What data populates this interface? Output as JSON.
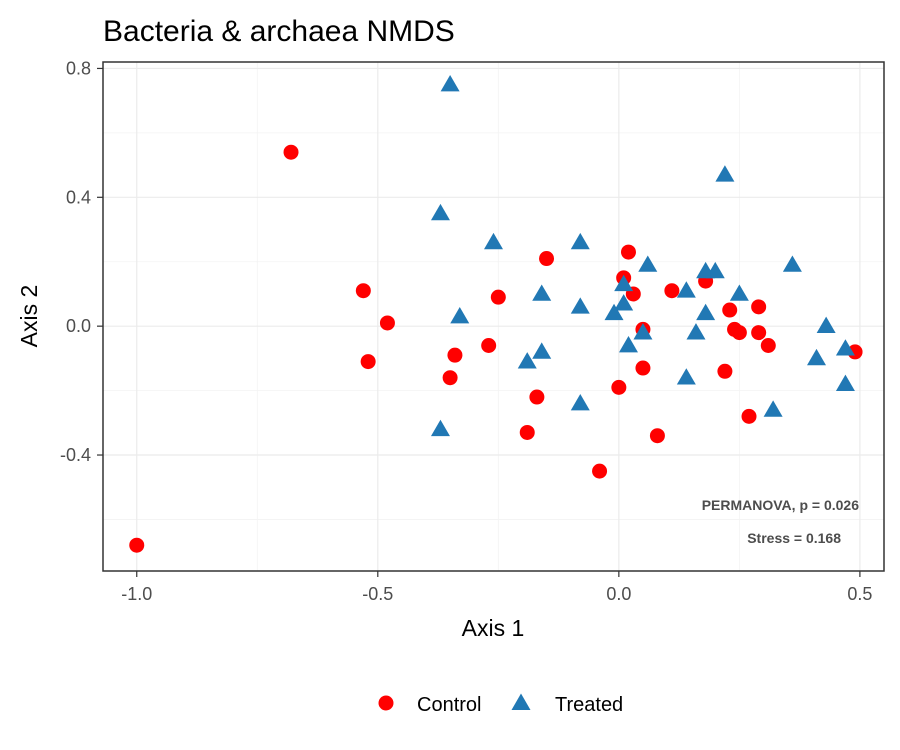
{
  "chart_data": {
    "type": "scatter",
    "title": "Bacteria & archaea NMDS",
    "xlabel": "Axis 1",
    "ylabel": "Axis 2",
    "xlim": [
      -1.07,
      0.55
    ],
    "ylim": [
      -0.76,
      0.82
    ],
    "x_ticks": [
      -1.0,
      -0.5,
      0.0,
      0.5
    ],
    "x_tick_labels": [
      "-1.0",
      "-0.5",
      "0.0",
      "0.5"
    ],
    "y_ticks": [
      -0.4,
      0.0,
      0.4,
      0.8
    ],
    "y_tick_labels": [
      "-0.4",
      "0.0",
      "0.4",
      "0.8"
    ],
    "grid": true,
    "legend_position": "bottom",
    "annotations": [
      "PERMANOVA, p = 0.026",
      "Stress = 0.168"
    ],
    "series": [
      {
        "name": "Control",
        "marker": "circle",
        "color": "#ff0000",
        "points": [
          [
            -1.0,
            -0.68
          ],
          [
            -0.68,
            0.54
          ],
          [
            -0.53,
            0.11
          ],
          [
            -0.52,
            -0.11
          ],
          [
            -0.48,
            0.01
          ],
          [
            -0.35,
            -0.16
          ],
          [
            -0.34,
            -0.09
          ],
          [
            -0.27,
            -0.06
          ],
          [
            -0.25,
            0.09
          ],
          [
            -0.19,
            -0.33
          ],
          [
            -0.17,
            -0.22
          ],
          [
            -0.15,
            0.21
          ],
          [
            -0.04,
            -0.45
          ],
          [
            0.0,
            -0.19
          ],
          [
            0.01,
            0.15
          ],
          [
            0.02,
            0.23
          ],
          [
            0.03,
            0.1
          ],
          [
            0.05,
            -0.01
          ],
          [
            0.05,
            -0.13
          ],
          [
            0.08,
            -0.34
          ],
          [
            0.11,
            0.11
          ],
          [
            0.18,
            0.14
          ],
          [
            0.22,
            -0.14
          ],
          [
            0.23,
            0.05
          ],
          [
            0.24,
            -0.01
          ],
          [
            0.25,
            -0.02
          ],
          [
            0.27,
            -0.28
          ],
          [
            0.29,
            -0.02
          ],
          [
            0.29,
            0.06
          ],
          [
            0.31,
            -0.06
          ],
          [
            0.49,
            -0.08
          ]
        ]
      },
      {
        "name": "Treated",
        "marker": "triangle",
        "color": "#2178b4",
        "points": [
          [
            -0.37,
            -0.32
          ],
          [
            -0.37,
            0.35
          ],
          [
            -0.35,
            0.75
          ],
          [
            -0.33,
            0.03
          ],
          [
            -0.26,
            0.26
          ],
          [
            -0.19,
            -0.11
          ],
          [
            -0.16,
            -0.08
          ],
          [
            -0.16,
            0.1
          ],
          [
            -0.08,
            -0.24
          ],
          [
            -0.08,
            0.06
          ],
          [
            -0.08,
            0.26
          ],
          [
            -0.01,
            0.04
          ],
          [
            0.01,
            0.13
          ],
          [
            0.01,
            0.07
          ],
          [
            0.02,
            -0.06
          ],
          [
            0.05,
            -0.02
          ],
          [
            0.06,
            0.19
          ],
          [
            0.14,
            -0.16
          ],
          [
            0.14,
            0.11
          ],
          [
            0.16,
            -0.02
          ],
          [
            0.18,
            0.17
          ],
          [
            0.18,
            0.04
          ],
          [
            0.2,
            0.17
          ],
          [
            0.22,
            0.47
          ],
          [
            0.25,
            0.1
          ],
          [
            0.32,
            -0.26
          ],
          [
            0.36,
            0.19
          ],
          [
            0.41,
            -0.1
          ],
          [
            0.43,
            0.0
          ],
          [
            0.47,
            -0.07
          ],
          [
            0.47,
            -0.18
          ]
        ]
      }
    ]
  }
}
